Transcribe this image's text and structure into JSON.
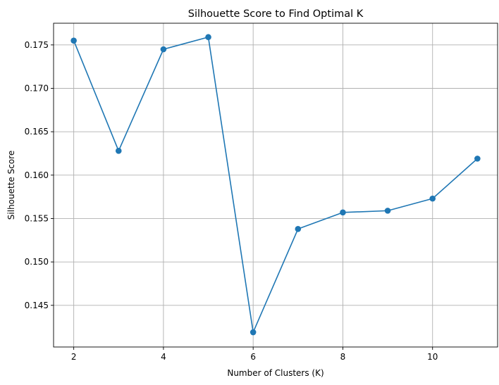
{
  "chart_data": {
    "type": "line",
    "title": "Silhouette Score to Find Optimal K",
    "xlabel": "Number of Clusters (K)",
    "ylabel": "Silhouette Score",
    "x": [
      2,
      3,
      4,
      5,
      6,
      7,
      8,
      9,
      10,
      11
    ],
    "series": [
      {
        "values": [
          0.1755,
          0.1628,
          0.1745,
          0.1759,
          0.1419,
          0.1538,
          0.1557,
          0.1559,
          0.1573,
          0.1619
        ],
        "color": "#1f77b4",
        "marker": "circle"
      }
    ],
    "xlim": [
      1.55,
      11.45
    ],
    "ylim": [
      0.1402,
      0.1775
    ],
    "xticks": [
      2,
      4,
      6,
      8,
      10
    ],
    "xtick_labels": [
      "2",
      "4",
      "6",
      "8",
      "10"
    ],
    "yticks": [
      0.145,
      0.15,
      0.155,
      0.16,
      0.165,
      0.17,
      0.175
    ],
    "ytick_labels": [
      "0.145",
      "0.150",
      "0.155",
      "0.160",
      "0.165",
      "0.170",
      "0.175"
    ],
    "grid": true,
    "legend": "none"
  }
}
